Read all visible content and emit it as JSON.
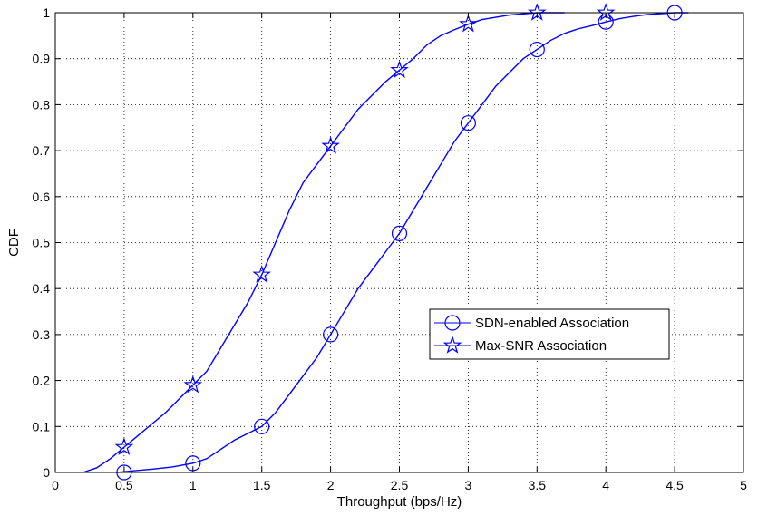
{
  "chart_data": {
    "type": "line",
    "xlabel": "Throughput (bps/Hz)",
    "ylabel": "CDF",
    "xlim": [
      0,
      5
    ],
    "ylim": [
      0,
      1
    ],
    "xticks": [
      "0",
      "0.5",
      "1",
      "1.5",
      "2",
      "2.5",
      "3",
      "3.5",
      "4",
      "4.5",
      "5"
    ],
    "yticks": [
      "0",
      "0.1",
      "0.2",
      "0.3",
      "0.4",
      "0.5",
      "0.6",
      "0.7",
      "0.8",
      "0.9",
      "1"
    ],
    "grid": true,
    "legend_position": "center-right",
    "line_color": "#0000ff",
    "series": [
      {
        "name": "SDN-enabled Association",
        "marker": "circle",
        "curve": [
          [
            0.45,
            0.0
          ],
          [
            0.55,
            0.003
          ],
          [
            0.7,
            0.007
          ],
          [
            0.85,
            0.012
          ],
          [
            1.0,
            0.02
          ],
          [
            1.1,
            0.03
          ],
          [
            1.2,
            0.05
          ],
          [
            1.3,
            0.07
          ],
          [
            1.4,
            0.085
          ],
          [
            1.5,
            0.1
          ],
          [
            1.6,
            0.13
          ],
          [
            1.7,
            0.17
          ],
          [
            1.8,
            0.21
          ],
          [
            1.9,
            0.25
          ],
          [
            2.0,
            0.3
          ],
          [
            2.1,
            0.35
          ],
          [
            2.2,
            0.4
          ],
          [
            2.3,
            0.44
          ],
          [
            2.4,
            0.48
          ],
          [
            2.5,
            0.52
          ],
          [
            2.6,
            0.57
          ],
          [
            2.7,
            0.62
          ],
          [
            2.8,
            0.67
          ],
          [
            2.9,
            0.72
          ],
          [
            3.0,
            0.76
          ],
          [
            3.1,
            0.8
          ],
          [
            3.2,
            0.84
          ],
          [
            3.3,
            0.87
          ],
          [
            3.4,
            0.9
          ],
          [
            3.5,
            0.92
          ],
          [
            3.6,
            0.94
          ],
          [
            3.7,
            0.955
          ],
          [
            3.8,
            0.965
          ],
          [
            3.9,
            0.972
          ],
          [
            4.0,
            0.98
          ],
          [
            4.1,
            0.987
          ],
          [
            4.2,
            0.992
          ],
          [
            4.3,
            0.996
          ],
          [
            4.4,
            0.998
          ],
          [
            4.5,
            1.0
          ],
          [
            4.6,
            1.0
          ]
        ],
        "markers": [
          [
            0.5,
            0.0
          ],
          [
            1.0,
            0.02
          ],
          [
            1.5,
            0.1
          ],
          [
            2.0,
            0.3
          ],
          [
            2.5,
            0.52
          ],
          [
            3.0,
            0.76
          ],
          [
            3.5,
            0.92
          ],
          [
            4.0,
            0.98
          ],
          [
            4.5,
            1.0
          ]
        ]
      },
      {
        "name": "Max-SNR Association",
        "marker": "star",
        "curve": [
          [
            0.2,
            0.0
          ],
          [
            0.3,
            0.01
          ],
          [
            0.4,
            0.03
          ],
          [
            0.5,
            0.055
          ],
          [
            0.6,
            0.08
          ],
          [
            0.7,
            0.105
          ],
          [
            0.8,
            0.13
          ],
          [
            0.9,
            0.16
          ],
          [
            1.0,
            0.19
          ],
          [
            1.1,
            0.22
          ],
          [
            1.2,
            0.27
          ],
          [
            1.3,
            0.32
          ],
          [
            1.4,
            0.37
          ],
          [
            1.5,
            0.43
          ],
          [
            1.6,
            0.5
          ],
          [
            1.7,
            0.57
          ],
          [
            1.8,
            0.63
          ],
          [
            1.9,
            0.67
          ],
          [
            2.0,
            0.71
          ],
          [
            2.1,
            0.75
          ],
          [
            2.2,
            0.79
          ],
          [
            2.3,
            0.82
          ],
          [
            2.4,
            0.85
          ],
          [
            2.5,
            0.875
          ],
          [
            2.6,
            0.9
          ],
          [
            2.7,
            0.93
          ],
          [
            2.8,
            0.95
          ],
          [
            2.9,
            0.963
          ],
          [
            3.0,
            0.975
          ],
          [
            3.1,
            0.985
          ],
          [
            3.2,
            0.99
          ],
          [
            3.3,
            0.995
          ],
          [
            3.5,
            1.0
          ],
          [
            3.7,
            1.0
          ]
        ],
        "markers": [
          [
            0.5,
            0.055
          ],
          [
            1.0,
            0.19
          ],
          [
            1.5,
            0.43
          ],
          [
            2.0,
            0.71
          ],
          [
            2.5,
            0.875
          ],
          [
            3.0,
            0.975
          ],
          [
            3.5,
            1.0
          ],
          [
            4.0,
            1.0
          ]
        ]
      }
    ]
  }
}
